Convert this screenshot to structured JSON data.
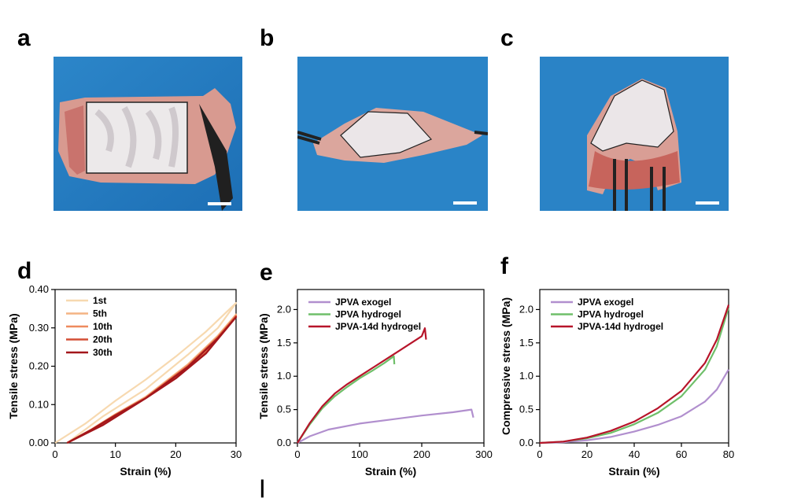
{
  "panels": {
    "a": "a",
    "b": "b",
    "c": "c",
    "d": "d",
    "e": "e",
    "f": "f",
    "g": "|"
  },
  "chart_data": [
    {
      "panel": "d",
      "type": "line",
      "xlabel": "Strain (%)",
      "ylabel": "Tensile stress (MPa)",
      "xlim": [
        0,
        30
      ],
      "ylim": [
        0,
        0.4
      ],
      "xticks": [
        0,
        10,
        20,
        30
      ],
      "yticks": [
        0.0,
        0.1,
        0.2,
        0.3,
        0.4
      ],
      "legend": "top-left",
      "series": [
        {
          "name": "1st",
          "color": "#f7d9b0",
          "load": [
            [
              0,
              0
            ],
            [
              5,
              0.05
            ],
            [
              10,
              0.11
            ],
            [
              15,
              0.165
            ],
            [
              20,
              0.225
            ],
            [
              25,
              0.29
            ],
            [
              30,
              0.365
            ]
          ],
          "unload": [
            [
              30,
              0.365
            ],
            [
              27,
              0.3
            ],
            [
              22,
              0.23
            ],
            [
              15,
              0.14
            ],
            [
              8,
              0.07
            ],
            [
              2,
              0
            ]
          ]
        },
        {
          "name": "5th",
          "color": "#f4b483",
          "load": [
            [
              2,
              0
            ],
            [
              6,
              0.035
            ],
            [
              10,
              0.075
            ],
            [
              15,
              0.12
            ],
            [
              20,
              0.175
            ],
            [
              25,
              0.24
            ],
            [
              30,
              0.335
            ]
          ],
          "unload": [
            [
              30,
              0.335
            ],
            [
              27,
              0.28
            ],
            [
              22,
              0.205
            ],
            [
              15,
              0.12
            ],
            [
              8,
              0.05
            ],
            [
              2,
              0
            ]
          ]
        },
        {
          "name": "10th",
          "color": "#ee8a5e",
          "load": [
            [
              2,
              0
            ],
            [
              6,
              0.035
            ],
            [
              10,
              0.074
            ],
            [
              15,
              0.118
            ],
            [
              20,
              0.172
            ],
            [
              25,
              0.237
            ],
            [
              30,
              0.332
            ]
          ],
          "unload": [
            [
              30,
              0.332
            ],
            [
              27,
              0.277
            ],
            [
              22,
              0.202
            ],
            [
              15,
              0.118
            ],
            [
              8,
              0.049
            ],
            [
              2,
              0
            ]
          ]
        },
        {
          "name": "20th",
          "color": "#d44f35",
          "load": [
            [
              2,
              0
            ],
            [
              6,
              0.034
            ],
            [
              10,
              0.073
            ],
            [
              15,
              0.117
            ],
            [
              20,
              0.17
            ],
            [
              25,
              0.235
            ],
            [
              30,
              0.33
            ]
          ],
          "unload": [
            [
              30,
              0.33
            ],
            [
              27,
              0.275
            ],
            [
              22,
              0.2
            ],
            [
              15,
              0.117
            ],
            [
              8,
              0.048
            ],
            [
              2,
              0
            ]
          ]
        },
        {
          "name": "30th",
          "color": "#a3161b",
          "load": [
            [
              2,
              0
            ],
            [
              6,
              0.034
            ],
            [
              10,
              0.072
            ],
            [
              15,
              0.116
            ],
            [
              20,
              0.168
            ],
            [
              25,
              0.233
            ],
            [
              30,
              0.328
            ]
          ],
          "unload": [
            [
              30,
              0.328
            ],
            [
              27,
              0.273
            ],
            [
              22,
              0.198
            ],
            [
              15,
              0.116
            ],
            [
              8,
              0.047
            ],
            [
              2,
              0
            ]
          ]
        }
      ]
    },
    {
      "panel": "e",
      "type": "line",
      "xlabel": "Strain (%)",
      "ylabel": "Tensile stress (MPa)",
      "xlim": [
        0,
        300
      ],
      "ylim": [
        0,
        2.3
      ],
      "xticks": [
        0,
        100,
        200,
        300
      ],
      "yticks": [
        0.0,
        0.5,
        1.0,
        1.5,
        2.0
      ],
      "legend": "top-left",
      "series": [
        {
          "name": "JPVA exogel",
          "color": "#b18fce",
          "points": [
            [
              0,
              0
            ],
            [
              20,
              0.1
            ],
            [
              50,
              0.2
            ],
            [
              100,
              0.29
            ],
            [
              150,
              0.35
            ],
            [
              200,
              0.41
            ],
            [
              250,
              0.46
            ],
            [
              280,
              0.5
            ],
            [
              283,
              0.38
            ]
          ]
        },
        {
          "name": "JPVA hydrogel",
          "color": "#6fbf6a",
          "points": [
            [
              0,
              0
            ],
            [
              20,
              0.28
            ],
            [
              40,
              0.52
            ],
            [
              60,
              0.7
            ],
            [
              80,
              0.84
            ],
            [
              100,
              0.97
            ],
            [
              120,
              1.08
            ],
            [
              140,
              1.2
            ],
            [
              155,
              1.3
            ],
            [
              156,
              1.18
            ]
          ]
        },
        {
          "name": "JPVA-14d hydrogel",
          "color": "#b7142a",
          "points": [
            [
              0,
              0
            ],
            [
              20,
              0.3
            ],
            [
              40,
              0.55
            ],
            [
              60,
              0.74
            ],
            [
              80,
              0.88
            ],
            [
              100,
              1.0
            ],
            [
              125,
              1.15
            ],
            [
              150,
              1.3
            ],
            [
              175,
              1.45
            ],
            [
              200,
              1.6
            ],
            [
              205,
              1.72
            ],
            [
              207,
              1.55
            ]
          ]
        }
      ]
    },
    {
      "panel": "f",
      "type": "line",
      "xlabel": "Strain (%)",
      "ylabel": "Compressive stress (MPa)",
      "xlim": [
        0,
        80
      ],
      "ylim": [
        0,
        2.3
      ],
      "xticks": [
        0,
        20,
        40,
        60,
        80
      ],
      "yticks": [
        0.0,
        0.5,
        1.0,
        1.5,
        2.0
      ],
      "legend": "top-left",
      "series": [
        {
          "name": "JPVA exogel",
          "color": "#b18fce",
          "points": [
            [
              0,
              0
            ],
            [
              10,
              0.01
            ],
            [
              20,
              0.04
            ],
            [
              30,
              0.09
            ],
            [
              40,
              0.17
            ],
            [
              50,
              0.27
            ],
            [
              60,
              0.4
            ],
            [
              70,
              0.62
            ],
            [
              75,
              0.8
            ],
            [
              80,
              1.1
            ]
          ]
        },
        {
          "name": "JPVA hydrogel",
          "color": "#6fbf6a",
          "points": [
            [
              0,
              0
            ],
            [
              10,
              0.02
            ],
            [
              20,
              0.07
            ],
            [
              30,
              0.15
            ],
            [
              40,
              0.28
            ],
            [
              50,
              0.45
            ],
            [
              60,
              0.7
            ],
            [
              70,
              1.1
            ],
            [
              75,
              1.45
            ],
            [
              80,
              2.03
            ]
          ]
        },
        {
          "name": "JPVA-14d hydrogel",
          "color": "#b7142a",
          "points": [
            [
              0,
              0
            ],
            [
              10,
              0.02
            ],
            [
              20,
              0.08
            ],
            [
              30,
              0.18
            ],
            [
              40,
              0.32
            ],
            [
              50,
              0.52
            ],
            [
              60,
              0.78
            ],
            [
              70,
              1.2
            ],
            [
              75,
              1.55
            ],
            [
              80,
              2.07
            ]
          ]
        }
      ]
    }
  ]
}
